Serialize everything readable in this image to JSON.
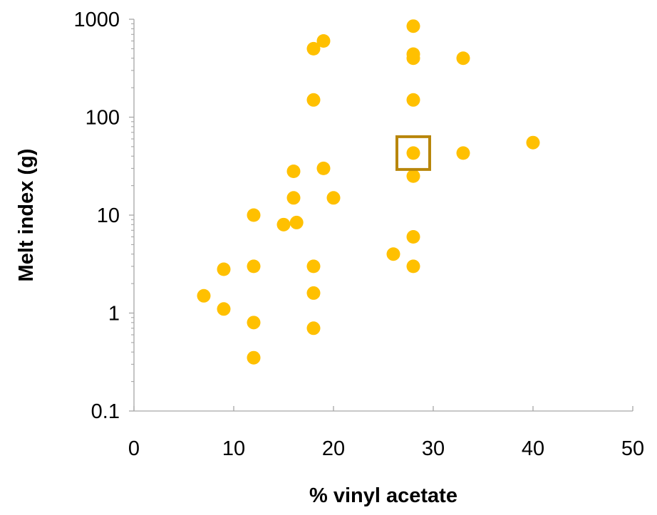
{
  "chart_data": {
    "type": "scatter",
    "title": "",
    "xlabel": "% vinyl acetate",
    "ylabel": "Melt index (g)",
    "xlim": [
      0,
      50
    ],
    "ylim": [
      0.1,
      1000
    ],
    "yscale": "log",
    "grid": false,
    "x_ticks": [
      "0",
      "10",
      "20",
      "30",
      "40",
      "50"
    ],
    "y_ticks": [
      "0.1",
      "1",
      "10",
      "100",
      "1000"
    ],
    "series": [
      {
        "color": "#FFC000",
        "points": [
          {
            "x": 7,
            "y": 1.5
          },
          {
            "x": 9,
            "y": 1.1
          },
          {
            "x": 9,
            "y": 2.8
          },
          {
            "x": 12,
            "y": 0.35
          },
          {
            "x": 12,
            "y": 0.8
          },
          {
            "x": 12,
            "y": 3
          },
          {
            "x": 12,
            "y": 10
          },
          {
            "x": 15,
            "y": 8
          },
          {
            "x": 16,
            "y": 15
          },
          {
            "x": 16,
            "y": 28
          },
          {
            "x": 16.3,
            "y": 8.4
          },
          {
            "x": 18,
            "y": 0.7
          },
          {
            "x": 18,
            "y": 1.6
          },
          {
            "x": 18,
            "y": 3
          },
          {
            "x": 18,
            "y": 150
          },
          {
            "x": 18,
            "y": 500
          },
          {
            "x": 19,
            "y": 600
          },
          {
            "x": 19,
            "y": 30
          },
          {
            "x": 20,
            "y": 15
          },
          {
            "x": 26,
            "y": 4
          },
          {
            "x": 28,
            "y": 3
          },
          {
            "x": 28,
            "y": 6
          },
          {
            "x": 28,
            "y": 25
          },
          {
            "x": 28,
            "y": 43
          },
          {
            "x": 28,
            "y": 150
          },
          {
            "x": 28,
            "y": 400
          },
          {
            "x": 28,
            "y": 440
          },
          {
            "x": 28,
            "y": 850
          },
          {
            "x": 33,
            "y": 43
          },
          {
            "x": 33,
            "y": 400
          },
          {
            "x": 40,
            "y": 55
          }
        ]
      }
    ],
    "highlight": {
      "shape": "square",
      "color": "#B8860B",
      "x": 28,
      "y": 43
    }
  }
}
